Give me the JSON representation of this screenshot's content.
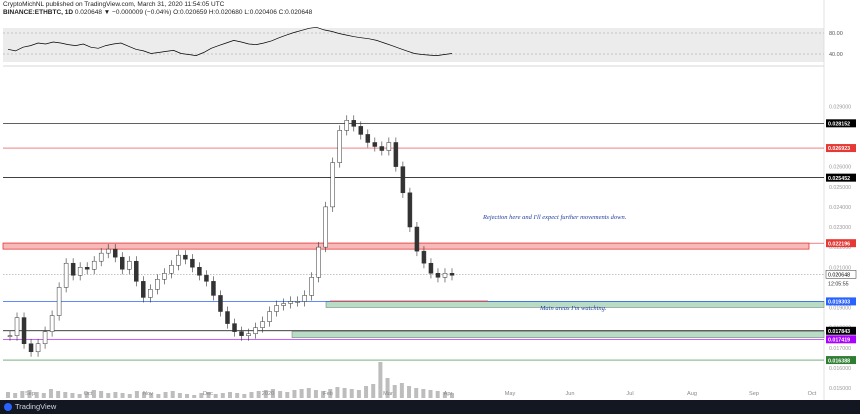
{
  "header": {
    "line1": "CryptoMichNL published on TradingView.com, March 31, 2020 11:54:05 UTC",
    "symbol": "BINANCE:ETHBTC, 1D",
    "change": "0.020648 ▼ −0.000009 (−0.04%)",
    "ohlc": "O:0.020659 H:0.020680 L:0.020406 C:0.020648"
  },
  "annotations": {
    "rejection": "Rejection here and I'll expect further movements down.",
    "main_areas": "Main areas I'm watching."
  },
  "footer": {
    "brand": "TradingView"
  },
  "colors": {
    "candle_up": "#26a69a",
    "candle_down": "#ef5350",
    "resistance_zone": "#f7b9b9",
    "support_zone": "#b9dcc6",
    "rsi": "#000000"
  },
  "chart_data": {
    "type": "candlestick",
    "title": "BINANCE:ETHBTC, 1D",
    "ylim": [
      0.015,
      0.031
    ],
    "price_ticks": [
      "0.029000",
      "0.026000",
      "0.025000",
      "0.024000",
      "0.023000",
      "0.022000",
      "0.021000",
      "0.019000",
      "0.018000",
      "0.017000",
      "0.016000",
      "0.015000"
    ],
    "x_labels": [
      "Sep",
      "Oct",
      "Nov",
      "Dec",
      "2020",
      "Feb",
      "Mar",
      "Apr",
      "May",
      "Jun",
      "Jul",
      "Aug",
      "Sep",
      "Oct"
    ],
    "levels": [
      {
        "value": 0.028152,
        "label": "0.028152",
        "color": "#000000"
      },
      {
        "value": 0.026923,
        "label": "0.026923",
        "color": "#e53935"
      },
      {
        "value": 0.025452,
        "label": "0.025452",
        "color": "#000000"
      },
      {
        "value": 0.022196,
        "label": "0.022196",
        "color": "#e53935"
      },
      {
        "value": 0.019303,
        "label": "0.019303",
        "color": "#2962ff"
      },
      {
        "value": 0.017843,
        "label": "0.017843",
        "color": "#000000"
      },
      {
        "value": 0.017419,
        "label": "0.017419",
        "color": "#aa00ff"
      },
      {
        "value": 0.016388,
        "label": "0.016388",
        "color": "#2e7d32"
      }
    ],
    "last_price": {
      "value": 0.020648,
      "label": "0.020648",
      "countdown": "12:05:55"
    },
    "zones": [
      {
        "name": "resistance",
        "from": 0.0219,
        "to": 0.0222
      },
      {
        "name": "support",
        "from": 0.019,
        "to": 0.0193
      },
      {
        "name": "support",
        "from": 0.0175,
        "to": 0.0178
      }
    ],
    "rsi": {
      "levels": [
        "80.00",
        "40.00"
      ]
    },
    "price_path": [
      0.0176,
      0.0185,
      0.0172,
      0.0168,
      0.0172,
      0.0178,
      0.0186,
      0.02,
      0.0212,
      0.0206,
      0.021,
      0.0209,
      0.0213,
      0.0217,
      0.0219,
      0.0215,
      0.0209,
      0.0213,
      0.0203,
      0.0195,
      0.0199,
      0.0204,
      0.0207,
      0.0211,
      0.0216,
      0.0214,
      0.021,
      0.0206,
      0.0203,
      0.0196,
      0.0188,
      0.0182,
      0.0178,
      0.0176,
      0.0177,
      0.018,
      0.0183,
      0.0188,
      0.0191,
      0.0192,
      0.0193,
      0.0193,
      0.0196,
      0.0205,
      0.022,
      0.024,
      0.0262,
      0.0278,
      0.0283,
      0.028,
      0.0276,
      0.0272,
      0.027,
      0.0268,
      0.0272,
      0.026,
      0.0247,
      0.023,
      0.0218,
      0.0212,
      0.0207,
      0.0205,
      0.0207,
      0.0206
    ],
    "rsi_path": [
      48,
      45,
      52,
      55,
      60,
      58,
      62,
      60,
      57,
      55,
      58,
      52,
      50,
      55,
      58,
      60,
      54,
      48,
      45,
      40,
      42,
      44,
      46,
      40,
      38,
      36,
      42,
      50,
      55,
      60,
      65,
      62,
      58,
      57,
      60,
      64,
      70,
      75,
      80,
      84,
      88,
      90,
      85,
      82,
      78,
      75,
      72,
      70,
      68,
      65,
      60,
      55,
      50,
      45,
      40,
      38,
      37,
      36,
      38,
      40
    ],
    "volume_path": [
      6,
      5,
      7,
      8,
      6,
      5,
      9,
      7,
      6,
      5,
      4,
      6,
      8,
      7,
      5,
      6,
      5,
      4,
      7,
      6,
      5,
      4,
      6,
      7,
      5,
      4,
      3,
      5,
      6,
      4,
      5,
      6,
      5,
      4,
      6,
      7,
      8,
      9,
      7,
      6,
      8,
      9,
      10,
      8,
      7,
      9,
      11,
      10,
      9,
      8,
      12,
      14,
      36,
      20,
      13,
      15,
      12,
      10,
      9,
      8,
      7,
      6,
      5
    ]
  }
}
